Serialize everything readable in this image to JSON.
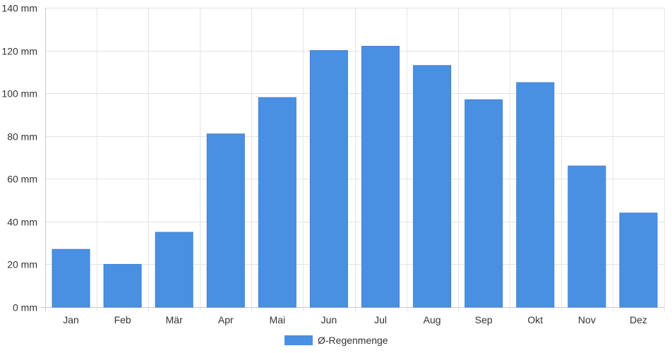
{
  "chart_data": {
    "type": "bar",
    "categories": [
      "Jan",
      "Feb",
      "Mär",
      "Apr",
      "Mai",
      "Jun",
      "Jul",
      "Aug",
      "Sep",
      "Okt",
      "Nov",
      "Dez"
    ],
    "series": [
      {
        "name": "Ø-Regenmenge",
        "color": "#4a90e2",
        "values": [
          27,
          20,
          35,
          81,
          98,
          120,
          122,
          113,
          97,
          105,
          66,
          44
        ]
      }
    ],
    "ylim": [
      0,
      140
    ],
    "yticks": [
      0,
      20,
      40,
      60,
      80,
      100,
      120,
      140
    ],
    "yunit": "mm",
    "grid": true,
    "legend_position": "bottom-center"
  }
}
